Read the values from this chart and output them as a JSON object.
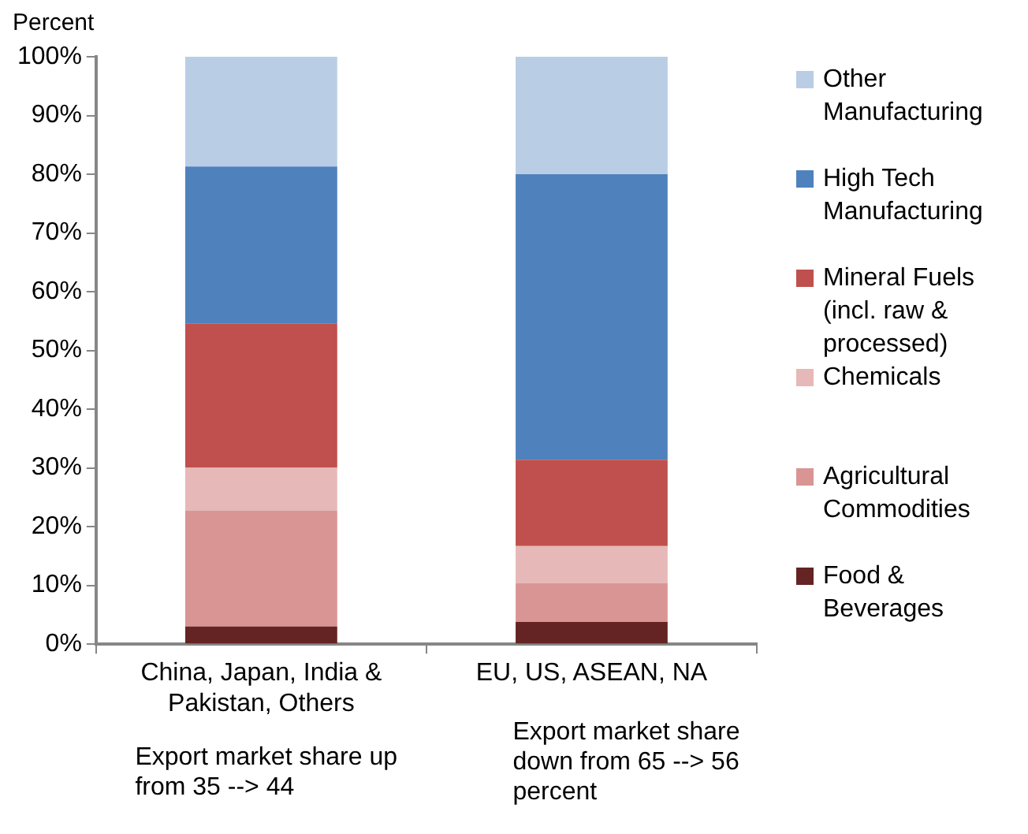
{
  "chart_data": {
    "type": "bar",
    "stacked": true,
    "ylabel": "Percent",
    "categories": [
      "China, Japan, India & Pakistan, Others",
      "EU, US, ASEAN, NA"
    ],
    "series": [
      {
        "name": "Food & Beverages",
        "color": "#632423",
        "values": [
          3.0,
          3.8
        ]
      },
      {
        "name": "Agricultural Commodities",
        "color": "#d99594",
        "values": [
          19.7,
          6.6
        ]
      },
      {
        "name": "Chemicals",
        "color": "#e6b8b7",
        "values": [
          7.4,
          6.3
        ]
      },
      {
        "name": "Mineral Fuels (incl. raw & processed)",
        "color": "#c0504d",
        "values": [
          24.5,
          14.7
        ]
      },
      {
        "name": "High Tech Manufacturing",
        "color": "#4f81bd",
        "values": [
          26.7,
          48.6
        ]
      },
      {
        "name": "Other Manufacturing",
        "color": "#b9cde5",
        "values": [
          18.7,
          20.0
        ]
      }
    ],
    "ylim": [
      0,
      100
    ],
    "yticks": [
      {
        "value": 0,
        "label": "0%"
      },
      {
        "value": 10,
        "label": "10%"
      },
      {
        "value": 20,
        "label": "20%"
      },
      {
        "value": 30,
        "label": "30%"
      },
      {
        "value": 40,
        "label": "40%"
      },
      {
        "value": 50,
        "label": "50%"
      },
      {
        "value": 60,
        "label": "60%"
      },
      {
        "value": 70,
        "label": "70%"
      },
      {
        "value": 80,
        "label": "80%"
      },
      {
        "value": 90,
        "label": "90%"
      },
      {
        "value": 100,
        "label": "100%"
      }
    ],
    "grid": false,
    "legend": "right",
    "annotations": [
      "Export market share up from 35 --> 44",
      "Export market share down from 65 --> 56 percent"
    ]
  }
}
